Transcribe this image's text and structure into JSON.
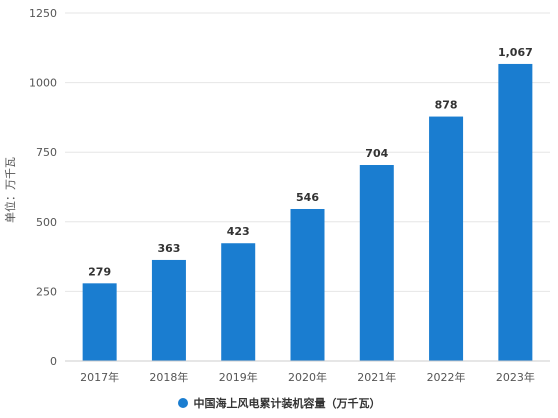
{
  "chart_data": {
    "type": "bar",
    "categories": [
      "2017年",
      "2018年",
      "2019年",
      "2020年",
      "2021年",
      "2022年",
      "2023年"
    ],
    "values": [
      279,
      363,
      423,
      546,
      704,
      878,
      1067
    ],
    "data_labels": [
      "279",
      "363",
      "423",
      "546",
      "704",
      "878",
      "1,067"
    ],
    "ylabel": "单位：万千瓦",
    "ylim": [
      0,
      1250
    ],
    "yticks": [
      0,
      250,
      500,
      750,
      1000,
      1250
    ],
    "grid": true,
    "legend_position": "bottom",
    "series": [
      {
        "name": "中国海上风电累计装机容量（万千瓦）",
        "color": "#1a7dd0"
      }
    ]
  }
}
